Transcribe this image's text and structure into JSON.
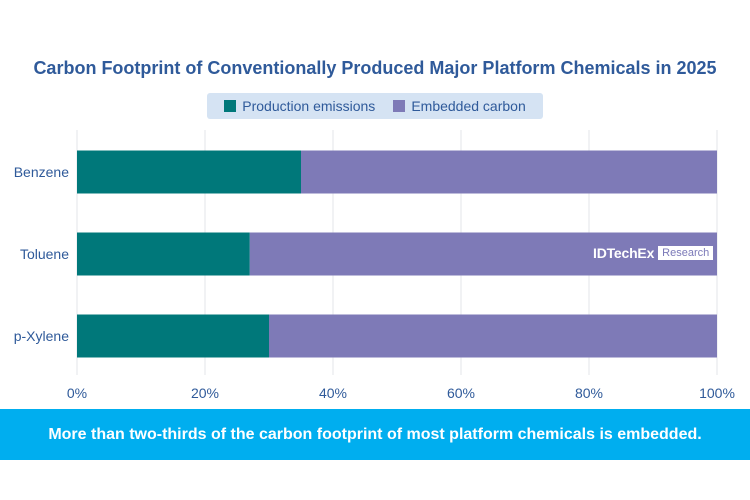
{
  "title": "Carbon Footprint of Conventionally Produced Major Platform Chemicals in 2025",
  "legend": {
    "production": "Production emissions",
    "embedded": "Embedded carbon"
  },
  "colors": {
    "production": "#00787a",
    "embedded": "#7e7ab7",
    "title": "#2f5a9a",
    "banner": "#00aeef"
  },
  "watermark": {
    "brand": "IDTechEx",
    "box": "Research"
  },
  "banner_text": "More than two-thirds of the carbon footprint of most platform chemicals is embedded.",
  "chart_data": {
    "type": "bar",
    "orientation": "horizontal",
    "stacked": true,
    "categories": [
      "Benzene",
      "Toluene",
      "p-Xylene"
    ],
    "series": [
      {
        "name": "Production emissions",
        "values": [
          35,
          27,
          30
        ]
      },
      {
        "name": "Embedded carbon",
        "values": [
          65,
          73,
          70
        ]
      }
    ],
    "xlim": [
      0,
      100
    ],
    "x_ticks": [
      "0%",
      "20%",
      "40%",
      "60%",
      "80%",
      "100%"
    ],
    "grid": true,
    "legend_position": "top"
  }
}
